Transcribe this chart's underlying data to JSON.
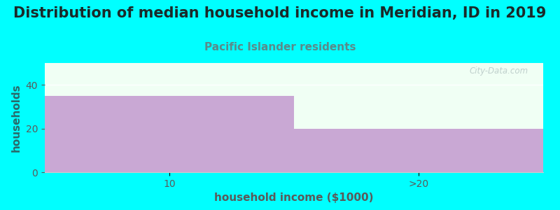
{
  "title": "Distribution of median household income in Meridian, ID in 2019",
  "subtitle": "Pacific Islander residents",
  "xlabel": "household income ($1000)",
  "ylabel": "households",
  "background_color": "#00FFFF",
  "plot_bg_color": "#F0FFF4",
  "bar_color": "#C9A8D4",
  "categories": [
    "10",
    ">20"
  ],
  "values": [
    35,
    20
  ],
  "ylim": [
    0,
    50
  ],
  "yticks": [
    0,
    20,
    40
  ],
  "title_fontsize": 15,
  "subtitle_fontsize": 11,
  "subtitle_color": "#5a8a8a",
  "axis_label_color": "#5a5a5a",
  "axis_label_fontsize": 11,
  "tick_label_color": "#5a5a5a",
  "ylabel_color": "#2a6a6a",
  "watermark": "City-Data.com"
}
